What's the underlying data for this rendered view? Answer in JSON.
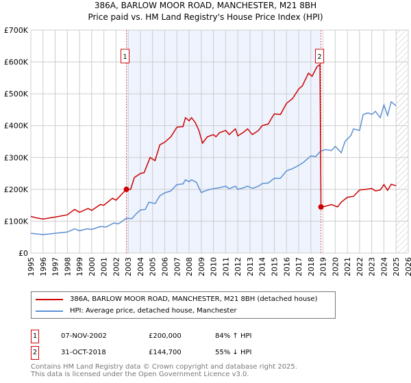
{
  "chart_data": {
    "type": "line",
    "title": "386A, BARLOW MOOR ROAD, MANCHESTER, M21 8BH",
    "subtitle": "Price paid vs. HM Land Registry's House Price Index (HPI)",
    "xlim": [
      1995,
      2026
    ],
    "ylim": [
      0,
      700000
    ],
    "yticks": [
      {
        "v": 0,
        "label": "£0"
      },
      {
        "v": 100000,
        "label": "£100K"
      },
      {
        "v": 200000,
        "label": "£200K"
      },
      {
        "v": 300000,
        "label": "£300K"
      },
      {
        "v": 400000,
        "label": "£400K"
      },
      {
        "v": 500000,
        "label": "£500K"
      },
      {
        "v": 600000,
        "label": "£600K"
      },
      {
        "v": 700000,
        "label": "£700K"
      }
    ],
    "xticks": [
      "1995",
      "1996",
      "1997",
      "1998",
      "1999",
      "2000",
      "2001",
      "2002",
      "2003",
      "2004",
      "2005",
      "2006",
      "2007",
      "2008",
      "2009",
      "2010",
      "2011",
      "2012",
      "2013",
      "2014",
      "2015",
      "2016",
      "2017",
      "2018",
      "2019",
      "2020",
      "2021",
      "2022",
      "2023",
      "2024",
      "2025",
      "2026"
    ],
    "grid": true,
    "colors": {
      "property": "#cc0000",
      "hpi": "#5b8fd4",
      "shade": "#eef3fd"
    },
    "series": [
      {
        "name": "386A, BARLOW MOOR ROAD, MANCHESTER, M21 8BH (detached house)",
        "color": "#cc0000",
        "x": [
          1995,
          1995.5,
          1996,
          1997,
          1998,
          1998.6,
          1999,
          1999.7,
          2000,
          2000.7,
          2001,
          2001.7,
          2002,
          2002.85,
          2003.2,
          2003.5,
          2004,
          2004.3,
          2004.8,
          2005.2,
          2005.6,
          2006,
          2006.5,
          2007,
          2007.5,
          2007.7,
          2008,
          2008.2,
          2008.5,
          2008.8,
          2009.1,
          2009.5,
          2010,
          2010.2,
          2010.5,
          2011,
          2011.3,
          2011.8,
          2012,
          2012.5,
          2012.8,
          2013.2,
          2013.7,
          2014,
          2014.5,
          2014.8,
          2015,
          2015.5,
          2016,
          2016.5,
          2017,
          2017.3,
          2017.8,
          2018.1,
          2018.5,
          2018.75,
          2018.83,
          2019.2,
          2019.7,
          2020.2,
          2020.5,
          2021,
          2021.5,
          2022,
          2022.5,
          2023,
          2023.3,
          2023.7,
          2024,
          2024.3,
          2024.6,
          2025
        ],
        "y": [
          115000,
          110000,
          107000,
          113000,
          120000,
          137000,
          128000,
          140000,
          134000,
          152000,
          150000,
          172000,
          166000,
          200000,
          200000,
          237000,
          250000,
          252000,
          300000,
          290000,
          340000,
          348000,
          365000,
          395000,
          397000,
          425000,
          415000,
          425000,
          410000,
          385000,
          345000,
          365000,
          372000,
          365000,
          378000,
          385000,
          372000,
          390000,
          368000,
          380000,
          390000,
          372000,
          385000,
          400000,
          405000,
          425000,
          437000,
          435000,
          470000,
          485000,
          515000,
          525000,
          565000,
          555000,
          585000,
          592000,
          144700,
          147000,
          152000,
          145000,
          160000,
          175000,
          178000,
          198000,
          200000,
          203000,
          195000,
          198000,
          215000,
          197000,
          216000,
          211000
        ]
      },
      {
        "name": "HPI: Average price, detached house, Manchester",
        "color": "#5b8fd4",
        "x": [
          1995,
          1996,
          1997,
          1998,
          1998.6,
          1999,
          1999.6,
          2000,
          2000.7,
          2001.2,
          2001.8,
          2002.2,
          2002.85,
          2003.3,
          2003.7,
          2004,
          2004.4,
          2004.7,
          2005.2,
          2005.6,
          2006,
          2006.5,
          2007,
          2007.5,
          2007.7,
          2008,
          2008.2,
          2008.6,
          2009,
          2009.4,
          2009.7,
          2010,
          2010.5,
          2011,
          2011.3,
          2011.8,
          2012,
          2012.5,
          2012.8,
          2013.2,
          2013.7,
          2014,
          2014.5,
          2015,
          2015.5,
          2016,
          2016.5,
          2017,
          2017.4,
          2018,
          2018.4,
          2018.8,
          2019.2,
          2019.7,
          2020,
          2020.5,
          2020.8,
          2021.3,
          2021.5,
          2022,
          2022.3,
          2022.7,
          2023,
          2023.3,
          2023.7,
          2024,
          2024.3,
          2024.6,
          2025
        ],
        "y": [
          62000,
          58000,
          62000,
          66000,
          76000,
          70000,
          76000,
          74000,
          83000,
          82000,
          94000,
          92000,
          109000,
          108000,
          125000,
          135000,
          137000,
          160000,
          155000,
          180000,
          189000,
          195000,
          215000,
          217000,
          230000,
          224000,
          230000,
          222000,
          190000,
          196000,
          200000,
          202000,
          205000,
          210000,
          202000,
          210000,
          200000,
          205000,
          210000,
          203000,
          210000,
          218000,
          220000,
          235000,
          235000,
          258000,
          265000,
          275000,
          285000,
          305000,
          303000,
          320000,
          325000,
          322000,
          335000,
          315000,
          350000,
          370000,
          390000,
          385000,
          435000,
          440000,
          435000,
          445000,
          425000,
          465000,
          432000,
          475000,
          462000
        ]
      }
    ],
    "sales": [
      {
        "label": "1",
        "x": 2002.85,
        "y": 200000
      },
      {
        "label": "2",
        "x": 2018.83,
        "y": 144700
      }
    ],
    "forecast_hatch_from": 2025,
    "legend_placement": "bottom"
  },
  "transactions": [
    {
      "num": "1",
      "date": "07-NOV-2002",
      "price": "£200,000",
      "hpi": "84% ↑ HPI"
    },
    {
      "num": "2",
      "date": "31-OCT-2018",
      "price": "£144,700",
      "hpi": "55% ↓ HPI"
    }
  ],
  "footer": {
    "line1": "Contains HM Land Registry data © Crown copyright and database right 2025.",
    "line2": "This data is licensed under the Open Government Licence v3.0."
  }
}
